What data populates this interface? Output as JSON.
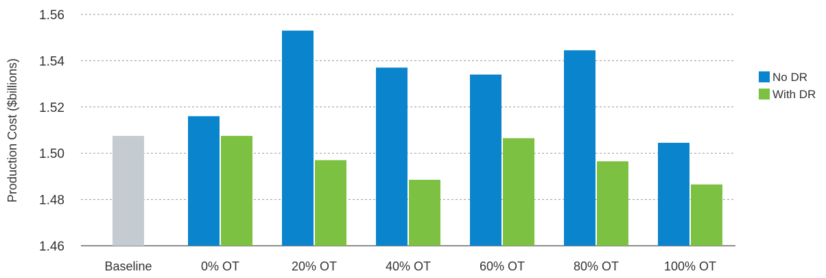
{
  "chart_data": {
    "type": "bar",
    "title": "",
    "xlabel": "",
    "ylabel": "Production Cost ($billions)",
    "ylim": [
      1.46,
      1.56
    ],
    "yticks": [
      "1.46",
      "1.48",
      "1.50",
      "1.52",
      "1.54",
      "1.56"
    ],
    "grid": true,
    "legend_position": "right",
    "categories": [
      "Baseline",
      "0% OT",
      "20% OT",
      "40% OT",
      "60% OT",
      "80% OT",
      "100% OT"
    ],
    "baseline": {
      "category": "Baseline",
      "value": 1.5075,
      "color": "#c4ccd1"
    },
    "series": [
      {
        "name": "No DR",
        "color": "#0a84cc",
        "values": [
          null,
          1.516,
          1.553,
          1.537,
          1.534,
          1.5445,
          1.5045
        ]
      },
      {
        "name": "With DR",
        "color": "#7dc142",
        "values": [
          null,
          1.5075,
          1.497,
          1.4885,
          1.5065,
          1.4965,
          1.4865
        ]
      }
    ]
  }
}
